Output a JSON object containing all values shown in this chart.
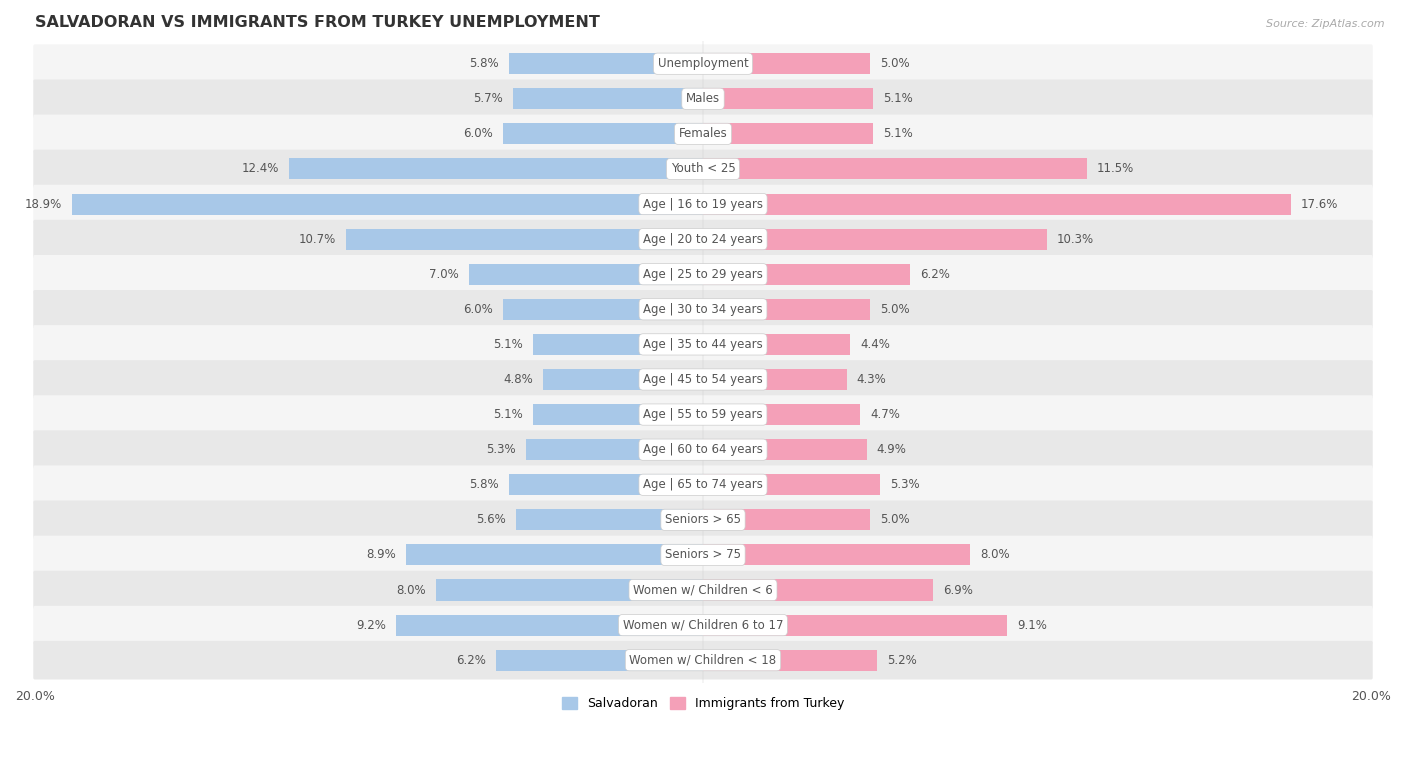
{
  "title": "SALVADORAN VS IMMIGRANTS FROM TURKEY UNEMPLOYMENT",
  "source": "Source: ZipAtlas.com",
  "categories": [
    "Unemployment",
    "Males",
    "Females",
    "Youth < 25",
    "Age | 16 to 19 years",
    "Age | 20 to 24 years",
    "Age | 25 to 29 years",
    "Age | 30 to 34 years",
    "Age | 35 to 44 years",
    "Age | 45 to 54 years",
    "Age | 55 to 59 years",
    "Age | 60 to 64 years",
    "Age | 65 to 74 years",
    "Seniors > 65",
    "Seniors > 75",
    "Women w/ Children < 6",
    "Women w/ Children 6 to 17",
    "Women w/ Children < 18"
  ],
  "salvadoran": [
    5.8,
    5.7,
    6.0,
    12.4,
    18.9,
    10.7,
    7.0,
    6.0,
    5.1,
    4.8,
    5.1,
    5.3,
    5.8,
    5.6,
    8.9,
    8.0,
    9.2,
    6.2
  ],
  "turkey": [
    5.0,
    5.1,
    5.1,
    11.5,
    17.6,
    10.3,
    6.2,
    5.0,
    4.4,
    4.3,
    4.7,
    4.9,
    5.3,
    5.0,
    8.0,
    6.9,
    9.1,
    5.2
  ],
  "salvadoran_color": "#a8c8e8",
  "turkey_color": "#f4a0b8",
  "row_colors": [
    "#f5f5f5",
    "#e8e8e8"
  ],
  "xlim": 20.0,
  "label_color": "#555555",
  "value_color": "#555555",
  "legend_salvadoran": "Salvadoran",
  "legend_turkey": "Immigrants from Turkey",
  "bar_height": 0.6
}
